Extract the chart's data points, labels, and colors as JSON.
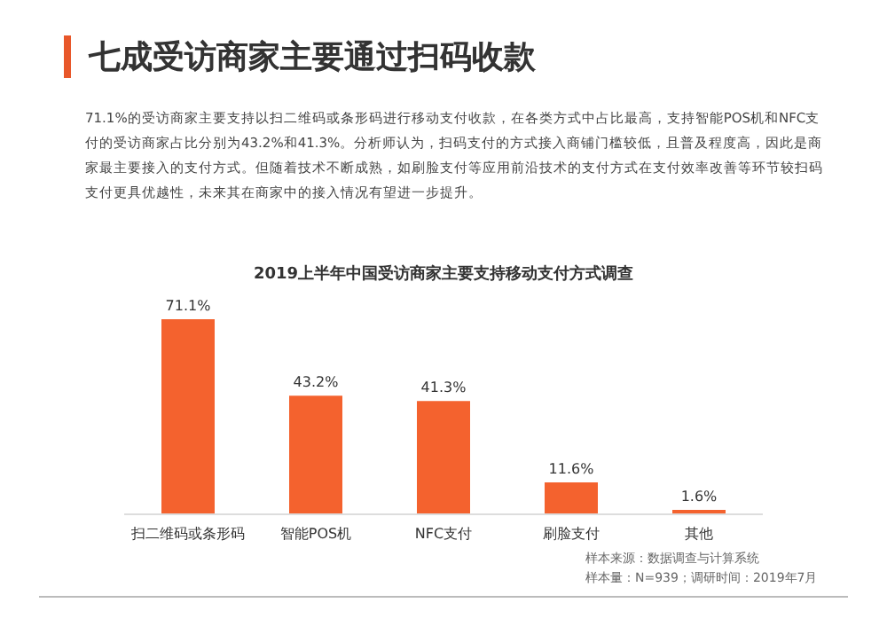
{
  "chart_data": {
    "type": "bar",
    "title": "七成受访商家主要通过扫码收款",
    "subtitle": "2019上半年中国受访商家主要支持移动支付方式调查",
    "annotations": [
      "71.1%的受访商家主要支持以扫二维码或条形码进行移动支付收款，在各类方式中占比最高，支持智能POS机和NFC支付的受访商家占比分别为43.2%和41.3%。分析师认为，扫码支付的方式接入商铺门槛较低，且普及程度高，因此是商家最主要接入的支付方式。但随着技术不断成熟，如刷脸支付等应用前沿技术的支付方式在支付效率改善等环节较扫码支付更具优越性，未来其在商家中的接入情况有望进一步提升。",
      "样本来源：数据调查与计算系统",
      "样本量：N=939；调研时间：2019年7月"
    ],
    "categories": [
      "扫二维码或条形码",
      "智能POS机",
      "NFC支付",
      "刷脸支付",
      "其他"
    ],
    "values": [
      71.1,
      43.2,
      41.3,
      11.6,
      1.6
    ],
    "value_labels": [
      "71.1%",
      "43.2%",
      "41.3%",
      "11.6%",
      "1.6%"
    ],
    "color": "#f4622e"
  }
}
